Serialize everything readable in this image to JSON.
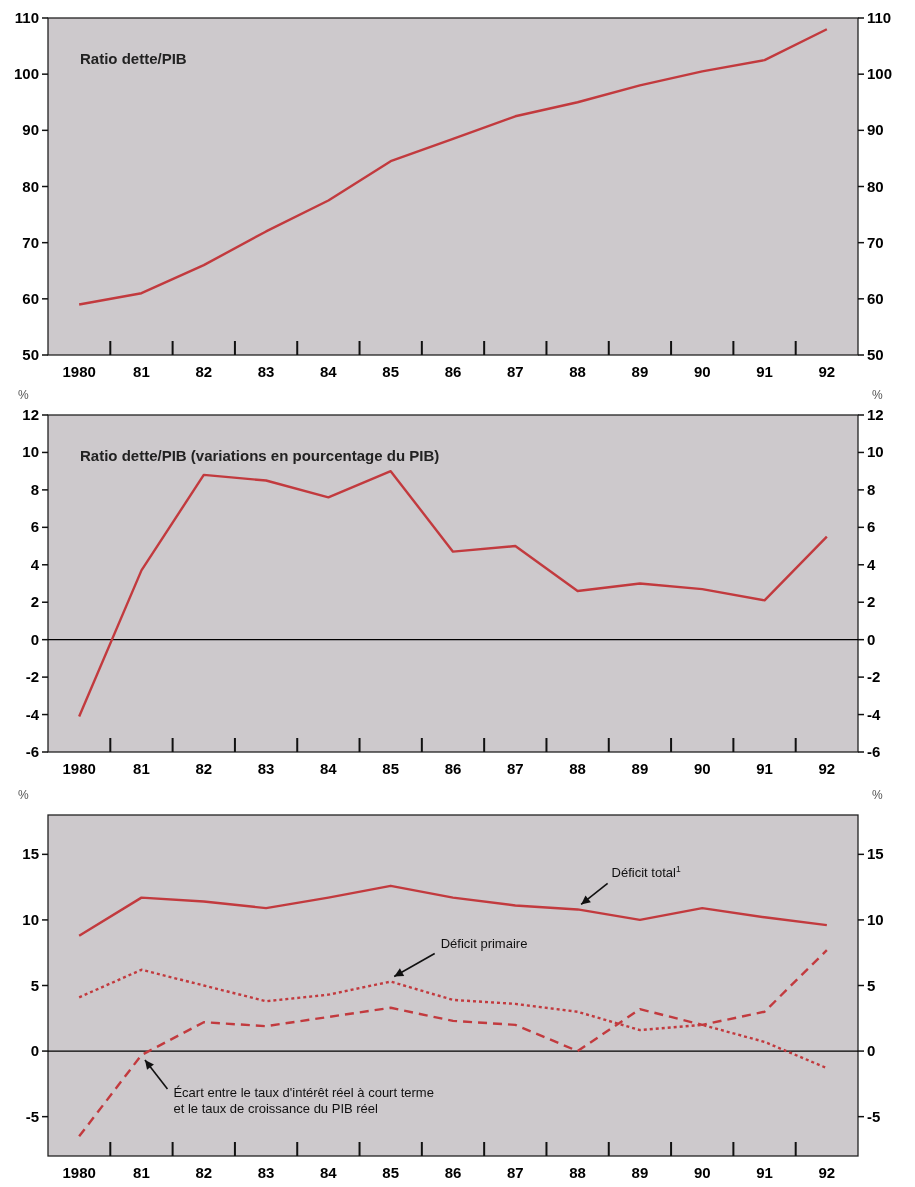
{
  "chart_data": [
    {
      "type": "line",
      "title": "Ratio dette/PIB",
      "categories": [
        "1980",
        "81",
        "82",
        "83",
        "84",
        "85",
        "86",
        "87",
        "88",
        "89",
        "90",
        "91",
        "92"
      ],
      "series": [
        {
          "color": "#c23a3e",
          "values": [
            59,
            61,
            66,
            72,
            77.5,
            84.5,
            88.5,
            92.5,
            95,
            98,
            100.5,
            102.5,
            108
          ]
        }
      ],
      "ylim": [
        50,
        110
      ],
      "yticks": [
        50,
        60,
        70,
        80,
        90,
        100,
        110
      ],
      "y2lim": [
        50,
        110
      ],
      "y2ticks": [
        50,
        60,
        70,
        80,
        90,
        100,
        110
      ],
      "line_style": "solid",
      "marker": "none"
    },
    {
      "type": "line",
      "title": "Ratio dette/PIB (variations en pourcentage du PIB)",
      "ylabel": "%",
      "y2label": "%",
      "categories": [
        "1980",
        "81",
        "82",
        "83",
        "84",
        "85",
        "86",
        "87",
        "88",
        "89",
        "90",
        "91",
        "92"
      ],
      "series": [
        {
          "color": "#c23a3e",
          "values": [
            -4.1,
            3.7,
            8.8,
            8.5,
            7.6,
            9.0,
            4.7,
            5.0,
            2.6,
            3.0,
            2.7,
            2.1,
            5.5
          ]
        }
      ],
      "ylim": [
        -6,
        12
      ],
      "yticks": [
        -6,
        -4,
        -2,
        0,
        2,
        4,
        6,
        8,
        10,
        12
      ],
      "y2lim": [
        -6,
        12
      ],
      "y2ticks": [
        -6,
        -4,
        -2,
        0,
        2,
        4,
        6,
        8,
        10,
        12
      ],
      "ref_lines": [
        {
          "axis": "y",
          "value": 0,
          "color": "#000000"
        }
      ],
      "line_style": "solid",
      "marker": "none"
    },
    {
      "type": "line",
      "ylabel": "%",
      "y2label": "%",
      "categories": [
        "1980",
        "81",
        "82",
        "83",
        "84",
        "85",
        "86",
        "87",
        "88",
        "89",
        "90",
        "91",
        "92"
      ],
      "series": [
        {
          "color": "#c23a3e",
          "line_style": "solid",
          "values": [
            8.8,
            11.7,
            11.4,
            10.9,
            11.7,
            12.6,
            11.7,
            11.1,
            10.8,
            10.0,
            10.9,
            10.2,
            9.6
          ]
        },
        {
          "color": "#c23a3e",
          "line_style": "dotted",
          "values": [
            4.1,
            6.2,
            5.0,
            3.8,
            4.3,
            5.3,
            3.9,
            3.6,
            3.0,
            1.6,
            2.0,
            0.7,
            -1.3
          ]
        },
        {
          "color": "#c23a3e",
          "line_style": "dashed",
          "values": [
            -6.5,
            -0.3,
            2.2,
            1.9,
            2.6,
            3.3,
            2.3,
            2.0,
            0.0,
            3.2,
            2.0,
            3.0,
            7.7
          ]
        }
      ],
      "annotations": [
        {
          "text": "Déficit total$^{1}$",
          "x": "88",
          "y": 10.8
        },
        {
          "text": "Déficit primaire",
          "x": "85",
          "y": 5.3
        },
        {
          "text": "Écart entre le taux d'intérêt réel à court terme\net le taux de croissance du PIB réel",
          "x": "81",
          "y": -0.3
        }
      ],
      "ylim": [
        -8,
        18
      ],
      "yticks": [
        -5,
        0,
        5,
        10,
        15
      ],
      "y2lim": [
        -8,
        18
      ],
      "y2ticks": [
        -5,
        0,
        5,
        10,
        15
      ],
      "ref_lines": [
        {
          "axis": "y",
          "value": 0,
          "color": "#000000"
        }
      ],
      "marker": "none"
    }
  ]
}
